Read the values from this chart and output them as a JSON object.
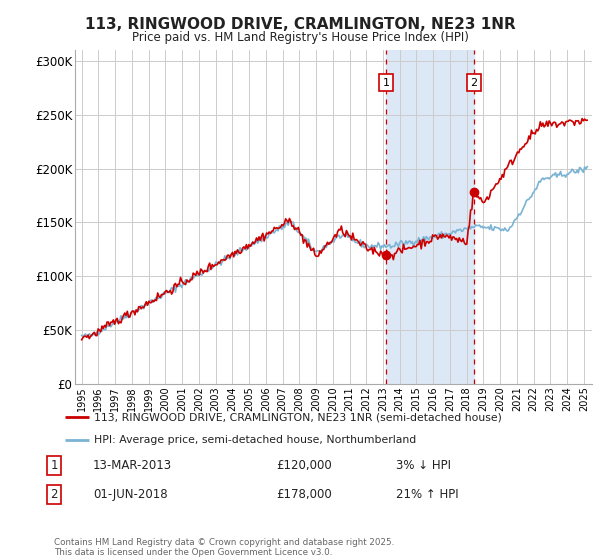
{
  "title": "113, RINGWOOD DRIVE, CRAMLINGTON, NE23 1NR",
  "subtitle": "Price paid vs. HM Land Registry's House Price Index (HPI)",
  "background_color": "#ffffff",
  "plot_bg_color": "#ffffff",
  "grid_color": "#cccccc",
  "ylim": [
    0,
    310000
  ],
  "yticks": [
    0,
    50000,
    100000,
    150000,
    200000,
    250000,
    300000
  ],
  "ytick_labels": [
    "£0",
    "£50K",
    "£100K",
    "£150K",
    "£200K",
    "£250K",
    "£300K"
  ],
  "property_color": "#cc0000",
  "hpi_color": "#7ab3d4",
  "sale1_date": 2013.2,
  "sale1_price": 120000,
  "sale1_label": "1",
  "sale2_date": 2018.42,
  "sale2_price": 178000,
  "sale2_label": "2",
  "shaded_region_color": "#dce8f5",
  "vline_color": "#cc0000",
  "legend_label_property": "113, RINGWOOD DRIVE, CRAMLINGTON, NE23 1NR (semi-detached house)",
  "legend_label_hpi": "HPI: Average price, semi-detached house, Northumberland",
  "annotation1_date": "13-MAR-2013",
  "annotation1_price": "£120,000",
  "annotation1_pct": "3% ↓ HPI",
  "annotation2_date": "01-JUN-2018",
  "annotation2_price": "£178,000",
  "annotation2_pct": "21% ↑ HPI",
  "footer": "Contains HM Land Registry data © Crown copyright and database right 2025.\nThis data is licensed under the Open Government Licence v3.0."
}
